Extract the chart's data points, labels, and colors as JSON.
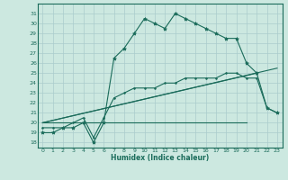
{
  "xlabel": "Humidex (Indice chaleur)",
  "background_color": "#cce8e0",
  "grid_color": "#aacccc",
  "line_color": "#1a6b5a",
  "xlim": [
    -0.5,
    23.5
  ],
  "ylim": [
    17.5,
    32.0
  ],
  "xticks": [
    0,
    1,
    2,
    3,
    4,
    5,
    6,
    7,
    8,
    9,
    10,
    11,
    12,
    13,
    14,
    15,
    16,
    17,
    18,
    19,
    20,
    21,
    22,
    23
  ],
  "yticks": [
    18,
    19,
    20,
    21,
    22,
    23,
    24,
    25,
    26,
    27,
    28,
    29,
    30,
    31
  ],
  "line1_x": [
    0,
    1,
    2,
    3,
    4,
    5,
    6,
    7,
    8,
    9,
    10,
    11,
    12,
    13,
    14,
    15,
    16,
    17,
    18,
    19,
    20,
    21,
    22,
    23
  ],
  "line1_y": [
    19,
    19,
    19.5,
    19.5,
    20,
    18,
    20,
    26.5,
    27.5,
    29,
    30.5,
    30,
    29.5,
    31,
    30.5,
    30,
    29.5,
    29,
    28.5,
    28.5,
    26,
    25,
    21.5,
    21
  ],
  "line2_x": [
    0,
    1,
    2,
    3,
    4,
    5,
    6,
    7,
    8,
    9,
    10,
    11,
    12,
    13,
    14,
    15,
    16,
    17,
    18,
    19,
    20,
    21,
    22,
    23
  ],
  "line2_y": [
    19.5,
    19.5,
    19.5,
    20,
    20.5,
    18.5,
    20.5,
    22.5,
    23,
    23.5,
    23.5,
    23.5,
    24,
    24,
    24.5,
    24.5,
    24.5,
    24.5,
    25,
    25,
    24.5,
    24.5,
    21.5,
    21
  ],
  "line3_x": [
    0,
    21
  ],
  "line3_y": [
    20,
    25
  ],
  "line4_x": [
    0,
    23
  ],
  "line4_y": [
    20,
    25.5
  ],
  "line5_x": [
    0,
    20
  ],
  "line5_y": [
    20,
    20
  ]
}
